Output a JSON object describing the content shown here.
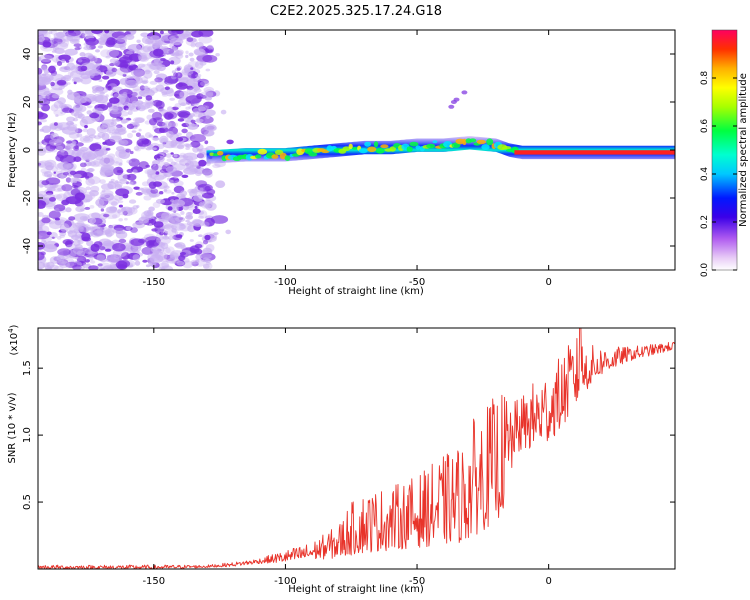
{
  "figure_title": "C2E2.2025.325.17.24.G18",
  "colors": {
    "axis": "#000000",
    "snr_line": "#e8332a",
    "noise_dot": "#7b2fe0",
    "noise_light": "#c9b0f2"
  },
  "chart_data": [
    {
      "id": "spectrogram",
      "type": "heatmap",
      "title": "C2E2.2025.325.17.24.G18",
      "xlabel": "Height of straight line (km)",
      "ylabel": "Frequency (Hz)",
      "xlim": [
        -194,
        48
      ],
      "ylim": [
        -50,
        50
      ],
      "xticks": [
        -150,
        -100,
        -50,
        0
      ],
      "xtick_labels": [
        "-150",
        "-100",
        "-50",
        "0"
      ],
      "yticks": [
        -40,
        -20,
        0,
        20,
        40
      ],
      "ytick_labels": [
        "-40",
        "-20",
        "0",
        "20",
        "40"
      ],
      "noise_region_x": [
        -194,
        -128
      ],
      "signal_start_x": -130,
      "signal_freq_profile": {
        "x": [
          -130,
          -115,
          -100,
          -90,
          -80,
          -70,
          -60,
          -50,
          -40,
          -30,
          -20,
          -15,
          -10,
          0,
          10,
          20,
          30,
          48
        ],
        "freq": [
          -3,
          -2,
          -2,
          -1,
          0,
          1,
          1,
          2,
          2,
          3,
          2,
          0,
          -1,
          -1,
          -1,
          -1,
          -1,
          -1
        ]
      },
      "colorbar": {
        "label": "Normalized spectral amplitude",
        "range": [
          0,
          1
        ],
        "ticks": [
          0.0,
          0.2,
          0.4,
          0.6,
          0.8
        ],
        "tick_labels": [
          "0.0",
          "0.2",
          "0.4",
          "0.6",
          "0.8"
        ]
      }
    },
    {
      "id": "snr",
      "type": "line",
      "title": "",
      "xlabel": "Height of straight line (km)",
      "ylabel": "SNR (10 * v/v)",
      "y_multiplier_label": "(x10",
      "y_multiplier_exp": "4",
      "xlim": [
        -194,
        48
      ],
      "ylim": [
        0,
        1.8
      ],
      "xticks": [
        -150,
        -100,
        -50,
        0
      ],
      "xtick_labels": [
        "-150",
        "-100",
        "-50",
        "0"
      ],
      "yticks": [
        0.5,
        1.0,
        1.5
      ],
      "ytick_labels": [
        "0.5",
        "1.0",
        "1.5"
      ],
      "series": [
        {
          "name": "SNR",
          "envelope": {
            "x": [
              -194,
              -150,
              -130,
              -120,
              -110,
              -100,
              -90,
              -80,
              -76,
              -70,
              -60,
              -50,
              -40,
              -32,
              -28,
              -20,
              -15,
              -13,
              -10,
              -5,
              0,
              5,
              10,
              15,
              20,
              30,
              40,
              48
            ],
            "low": [
              0.0,
              0.0,
              0.01,
              0.02,
              0.04,
              0.05,
              0.07,
              0.08,
              0.1,
              0.12,
              0.14,
              0.16,
              0.18,
              0.2,
              0.25,
              0.35,
              0.5,
              0.85,
              0.88,
              0.9,
              0.95,
              1.05,
              1.2,
              1.35,
              1.45,
              1.55,
              1.6,
              1.64
            ],
            "high": [
              0.03,
              0.03,
              0.03,
              0.05,
              0.08,
              0.14,
              0.2,
              0.33,
              0.48,
              0.58,
              0.62,
              0.7,
              0.85,
              0.95,
              1.15,
              1.3,
              1.35,
              1.25,
              1.3,
              1.42,
              1.5,
              1.6,
              1.75,
              1.68,
              1.66,
              1.66,
              1.68,
              1.7
            ]
          },
          "peak_km": 12,
          "peak_value": 1.8
        }
      ]
    }
  ]
}
